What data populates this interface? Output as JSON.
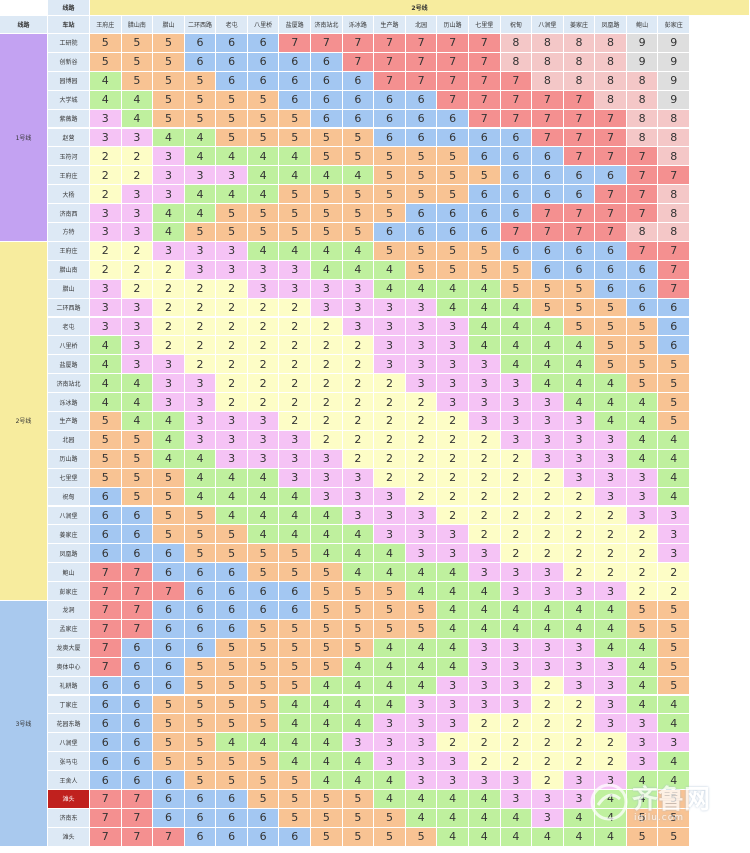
{
  "header": {
    "corner_top": "线路",
    "corner_bottom_left": "线路",
    "corner_bottom_right": "车站",
    "col_group_label": "2号线"
  },
  "columns": [
    "王府庄",
    "腊山南",
    "腊山",
    "二环西路",
    "老屯",
    "八里桥",
    "盐厦路",
    "济南站北",
    "泺冰路",
    "生产路",
    "北园",
    "历山路",
    "七里堡",
    "祝甸",
    "八涧堡",
    "姜家庄",
    "凤凰路",
    "鲍山",
    "彭家庄"
  ],
  "lines": [
    {
      "name": "1号线",
      "color": "#c3a2f2",
      "rows": [
        {
          "station": "工研院",
          "fares": [
            5,
            5,
            5,
            6,
            6,
            6,
            7,
            7,
            7,
            7,
            7,
            7,
            7,
            8,
            8,
            8,
            8,
            9,
            9
          ]
        },
        {
          "station": "创新谷",
          "fares": [
            5,
            5,
            5,
            6,
            6,
            6,
            6,
            6,
            7,
            7,
            7,
            7,
            7,
            8,
            8,
            8,
            8,
            9,
            9
          ]
        },
        {
          "station": "园博园",
          "fares": [
            4,
            5,
            5,
            5,
            6,
            6,
            6,
            6,
            6,
            7,
            7,
            7,
            7,
            7,
            8,
            8,
            8,
            8,
            9
          ]
        },
        {
          "station": "大学城",
          "fares": [
            4,
            4,
            5,
            5,
            5,
            5,
            6,
            6,
            6,
            6,
            6,
            7,
            7,
            7,
            7,
            7,
            8,
            8,
            9
          ]
        },
        {
          "station": "紫薇路",
          "fares": [
            3,
            4,
            5,
            5,
            5,
            5,
            5,
            6,
            6,
            6,
            6,
            6,
            7,
            7,
            7,
            7,
            7,
            8,
            8
          ]
        },
        {
          "station": "赵营",
          "fares": [
            3,
            3,
            4,
            4,
            5,
            5,
            5,
            5,
            5,
            6,
            6,
            6,
            6,
            6,
            7,
            7,
            7,
            8,
            8
          ]
        },
        {
          "station": "玉符河",
          "fares": [
            2,
            2,
            3,
            4,
            4,
            4,
            4,
            5,
            5,
            5,
            5,
            5,
            6,
            6,
            6,
            7,
            7,
            7,
            8
          ]
        },
        {
          "station": "王府庄",
          "fares": [
            2,
            2,
            3,
            3,
            3,
            4,
            4,
            4,
            4,
            5,
            5,
            5,
            5,
            6,
            6,
            6,
            6,
            7,
            7
          ]
        },
        {
          "station": "大杨",
          "fares": [
            2,
            3,
            3,
            4,
            4,
            4,
            5,
            5,
            5,
            5,
            5,
            5,
            6,
            6,
            6,
            6,
            7,
            7,
            8
          ]
        },
        {
          "station": "济南西",
          "fares": [
            3,
            3,
            4,
            4,
            5,
            5,
            5,
            5,
            5,
            5,
            6,
            6,
            6,
            6,
            7,
            7,
            7,
            7,
            8
          ]
        },
        {
          "station": "方特",
          "fares": [
            3,
            3,
            4,
            5,
            5,
            5,
            5,
            5,
            5,
            6,
            6,
            6,
            6,
            7,
            7,
            7,
            7,
            8,
            8
          ]
        }
      ]
    },
    {
      "name": "2号线",
      "color": "#f7ec9e",
      "rows": [
        {
          "station": "王府庄",
          "fares": [
            2,
            2,
            3,
            3,
            3,
            4,
            4,
            4,
            4,
            5,
            5,
            5,
            5,
            6,
            6,
            6,
            6,
            7,
            7
          ]
        },
        {
          "station": "腊山南",
          "fares": [
            2,
            2,
            2,
            3,
            3,
            3,
            3,
            4,
            4,
            4,
            5,
            5,
            5,
            5,
            6,
            6,
            6,
            6,
            7
          ]
        },
        {
          "station": "腊山",
          "fares": [
            3,
            2,
            2,
            2,
            2,
            3,
            3,
            3,
            3,
            4,
            4,
            4,
            4,
            5,
            5,
            5,
            6,
            6,
            7
          ]
        },
        {
          "station": "二环西路",
          "fares": [
            3,
            3,
            2,
            2,
            2,
            2,
            2,
            3,
            3,
            3,
            3,
            4,
            4,
            4,
            5,
            5,
            5,
            6,
            6
          ]
        },
        {
          "station": "老屯",
          "fares": [
            3,
            3,
            2,
            2,
            2,
            2,
            2,
            2,
            3,
            3,
            3,
            3,
            4,
            4,
            4,
            5,
            5,
            5,
            6
          ]
        },
        {
          "station": "八里桥",
          "fares": [
            4,
            3,
            2,
            2,
            2,
            2,
            2,
            2,
            2,
            3,
            3,
            3,
            4,
            4,
            4,
            4,
            5,
            5,
            6
          ]
        },
        {
          "station": "盐厦路",
          "fares": [
            4,
            3,
            3,
            2,
            2,
            2,
            2,
            2,
            2,
            3,
            3,
            3,
            3,
            4,
            4,
            4,
            5,
            5,
            5
          ]
        },
        {
          "station": "济南站北",
          "fares": [
            4,
            4,
            3,
            3,
            2,
            2,
            2,
            2,
            2,
            2,
            3,
            3,
            3,
            3,
            4,
            4,
            4,
            5,
            5
          ]
        },
        {
          "station": "泺冰路",
          "fares": [
            4,
            4,
            3,
            3,
            2,
            2,
            2,
            2,
            2,
            2,
            2,
            3,
            3,
            3,
            3,
            4,
            4,
            4,
            5
          ]
        },
        {
          "station": "生产路",
          "fares": [
            5,
            4,
            4,
            3,
            3,
            3,
            2,
            2,
            2,
            2,
            2,
            2,
            3,
            3,
            3,
            3,
            4,
            4,
            5
          ]
        },
        {
          "station": "北园",
          "fares": [
            5,
            5,
            4,
            3,
            3,
            3,
            3,
            2,
            2,
            2,
            2,
            2,
            2,
            3,
            3,
            3,
            3,
            4,
            4
          ]
        },
        {
          "station": "历山路",
          "fares": [
            5,
            5,
            4,
            4,
            3,
            3,
            3,
            3,
            2,
            2,
            2,
            2,
            2,
            2,
            3,
            3,
            3,
            4,
            4
          ]
        },
        {
          "station": "七里堡",
          "fares": [
            5,
            5,
            5,
            4,
            4,
            4,
            3,
            3,
            3,
            2,
            2,
            2,
            2,
            2,
            2,
            3,
            3,
            3,
            4
          ]
        },
        {
          "station": "祝甸",
          "fares": [
            6,
            5,
            5,
            4,
            4,
            4,
            4,
            3,
            3,
            3,
            2,
            2,
            2,
            2,
            2,
            2,
            3,
            3,
            4
          ]
        },
        {
          "station": "八涧堡",
          "fares": [
            6,
            6,
            5,
            5,
            4,
            4,
            4,
            4,
            3,
            3,
            3,
            2,
            2,
            2,
            2,
            2,
            2,
            3,
            3
          ]
        },
        {
          "station": "姜家庄",
          "fares": [
            6,
            6,
            5,
            5,
            5,
            4,
            4,
            4,
            4,
            3,
            3,
            3,
            2,
            2,
            2,
            2,
            2,
            2,
            3
          ]
        },
        {
          "station": "凤凰路",
          "fares": [
            6,
            6,
            6,
            5,
            5,
            5,
            5,
            4,
            4,
            4,
            3,
            3,
            3,
            2,
            2,
            2,
            2,
            2,
            3
          ]
        },
        {
          "station": "鲍山",
          "fares": [
            7,
            7,
            6,
            6,
            6,
            5,
            5,
            5,
            4,
            4,
            4,
            4,
            3,
            3,
            3,
            2,
            2,
            2,
            2
          ]
        },
        {
          "station": "彭家庄",
          "fares": [
            7,
            7,
            7,
            6,
            6,
            6,
            6,
            5,
            5,
            5,
            4,
            4,
            4,
            3,
            3,
            3,
            3,
            2,
            2
          ]
        }
      ]
    },
    {
      "name": "3号线",
      "color": "#a9c9ee",
      "rows": [
        {
          "station": "龙洞",
          "fares": [
            7,
            7,
            6,
            6,
            6,
            6,
            6,
            5,
            5,
            5,
            5,
            4,
            4,
            4,
            4,
            4,
            4,
            5,
            5
          ]
        },
        {
          "station": "孟家庄",
          "fares": [
            7,
            7,
            6,
            6,
            6,
            5,
            5,
            5,
            5,
            5,
            5,
            4,
            4,
            4,
            4,
            4,
            4,
            5,
            5
          ]
        },
        {
          "station": "龙奥大厦",
          "fares": [
            7,
            6,
            6,
            6,
            5,
            5,
            5,
            5,
            5,
            4,
            4,
            4,
            3,
            3,
            3,
            3,
            4,
            4,
            5
          ]
        },
        {
          "station": "奥体中心",
          "fares": [
            7,
            6,
            6,
            5,
            5,
            5,
            5,
            5,
            4,
            4,
            4,
            4,
            3,
            3,
            3,
            3,
            3,
            4,
            5
          ]
        },
        {
          "station": "礼耕路",
          "fares": [
            6,
            6,
            6,
            5,
            5,
            5,
            5,
            4,
            4,
            4,
            4,
            3,
            3,
            3,
            2,
            3,
            3,
            4,
            5
          ]
        },
        {
          "station": "丁家庄",
          "fares": [
            6,
            6,
            5,
            5,
            5,
            5,
            4,
            4,
            4,
            4,
            3,
            3,
            3,
            3,
            2,
            2,
            3,
            4,
            4
          ]
        },
        {
          "station": "花园东路",
          "fares": [
            6,
            6,
            5,
            5,
            5,
            5,
            4,
            4,
            4,
            3,
            3,
            3,
            2,
            2,
            2,
            2,
            3,
            3,
            4
          ]
        },
        {
          "station": "八涧堡",
          "fares": [
            6,
            6,
            5,
            5,
            4,
            4,
            4,
            4,
            3,
            3,
            3,
            2,
            2,
            2,
            2,
            2,
            2,
            3,
            3
          ]
        },
        {
          "station": "张马屯",
          "fares": [
            6,
            6,
            5,
            5,
            5,
            5,
            4,
            4,
            4,
            3,
            3,
            3,
            2,
            2,
            2,
            2,
            2,
            3,
            4
          ]
        },
        {
          "station": "王舍人",
          "fares": [
            6,
            6,
            6,
            5,
            5,
            5,
            5,
            4,
            4,
            4,
            3,
            3,
            3,
            3,
            2,
            3,
            3,
            4,
            4
          ]
        },
        {
          "station": "滩头",
          "fares": [
            7,
            7,
            6,
            6,
            6,
            5,
            5,
            5,
            5,
            4,
            4,
            4,
            4,
            3,
            3,
            3,
            4,
            4,
            5
          ],
          "highlight": "#c0211e"
        },
        {
          "station": "济南东",
          "fares": [
            7,
            7,
            6,
            6,
            6,
            6,
            5,
            5,
            5,
            5,
            4,
            4,
            4,
            4,
            3,
            4,
            4,
            5,
            5
          ]
        },
        {
          "station": "滩头",
          "fares": [
            7,
            7,
            7,
            6,
            6,
            6,
            6,
            5,
            5,
            5,
            5,
            4,
            4,
            4,
            4,
            4,
            4,
            5,
            5
          ]
        }
      ]
    }
  ],
  "fare_colors": {
    "2": "#fdfdc6",
    "3": "#f5c3f5",
    "4": "#bff09e",
    "5": "#f8c393",
    "6": "#a3c7f2",
    "7": "#f49090",
    "8": "#f4c7c7",
    "9": "#dedede"
  },
  "watermark": {
    "text": "齐鲁网",
    "url": "iqilu.com"
  }
}
